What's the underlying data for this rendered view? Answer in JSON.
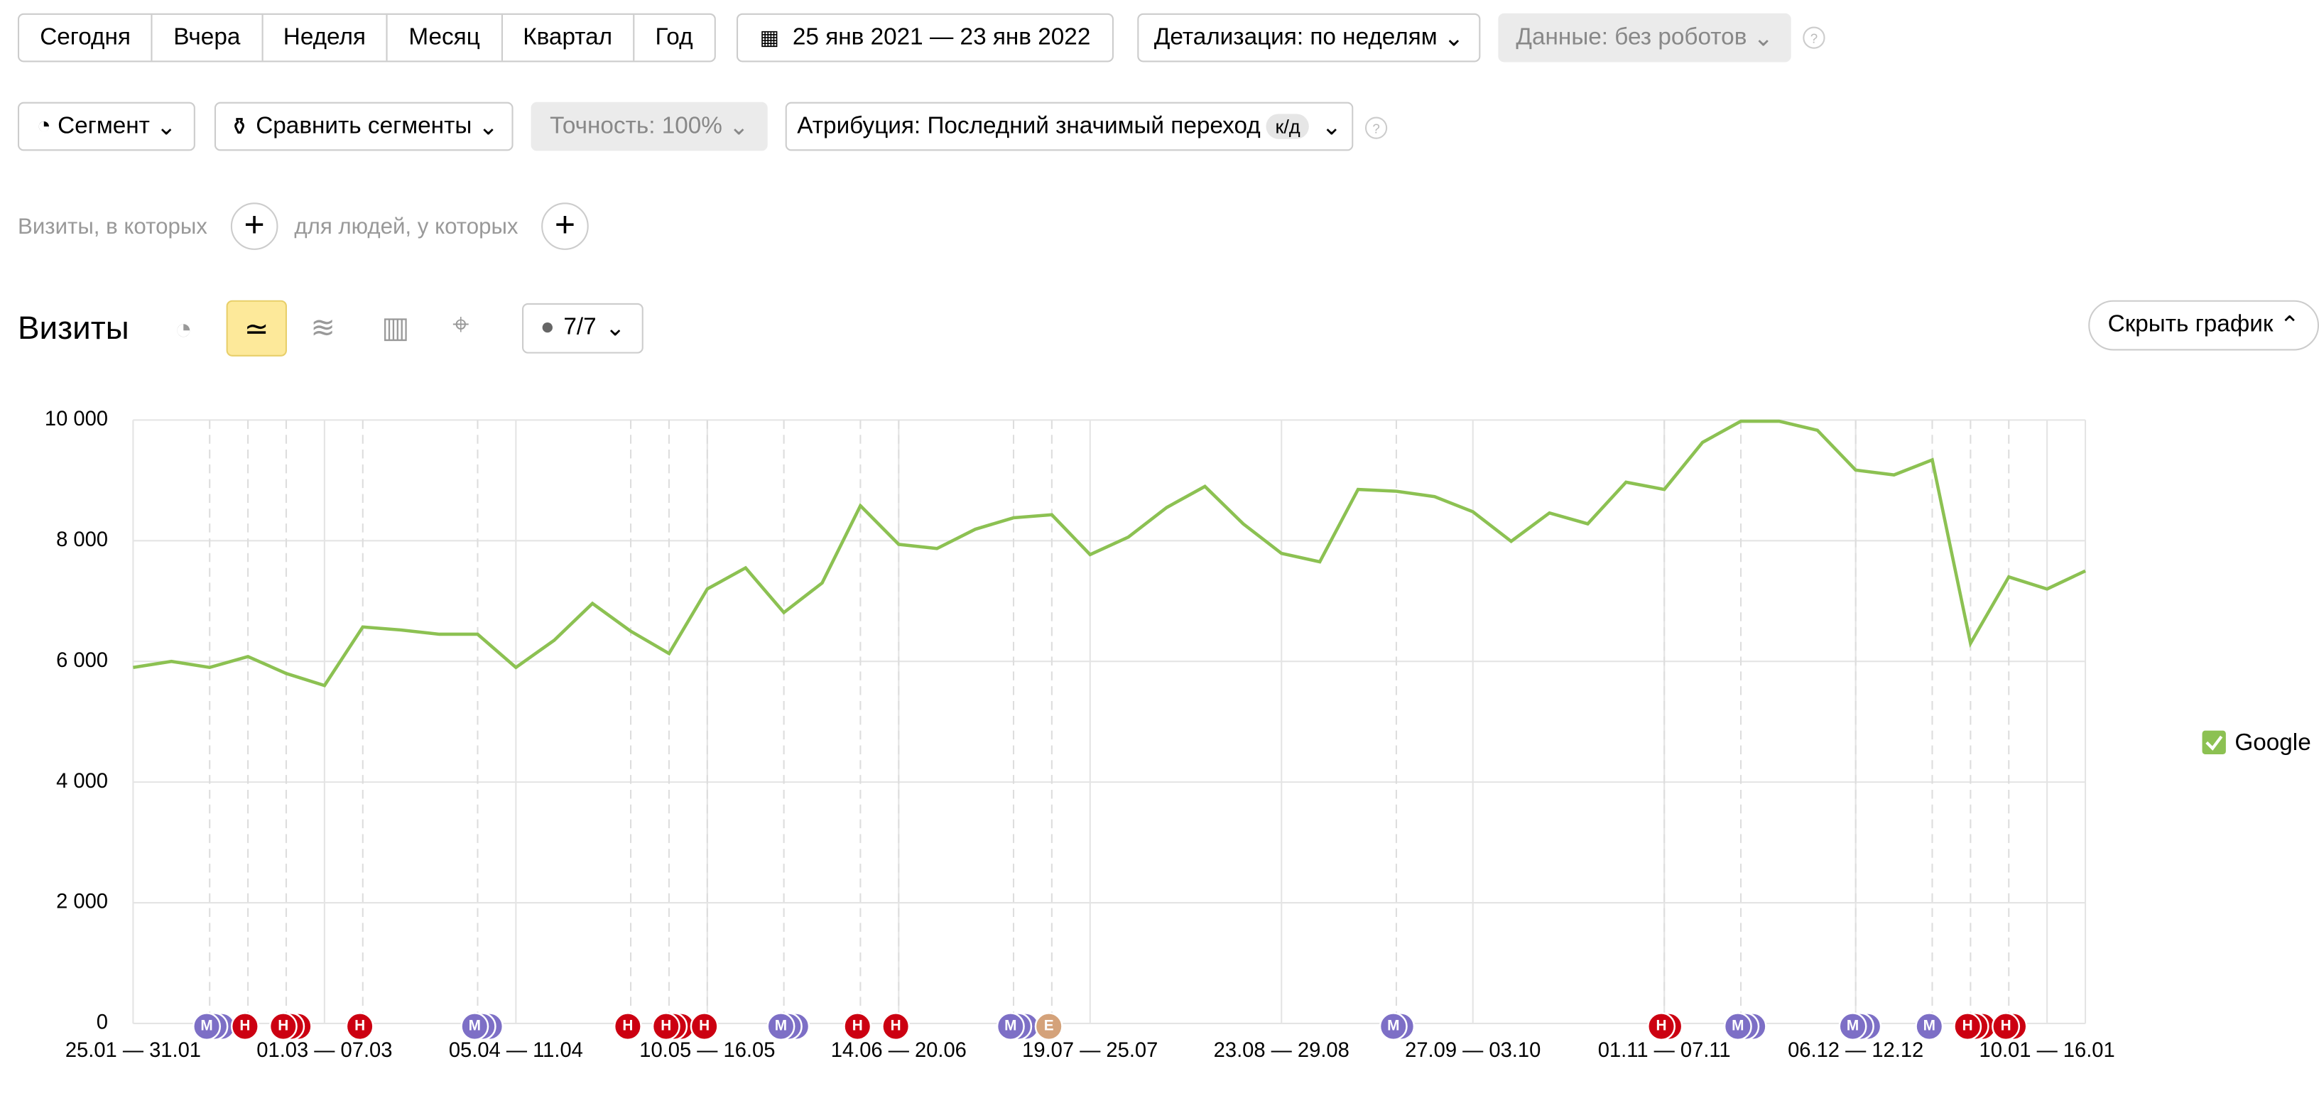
{
  "toolbar": {
    "periods": [
      "Сегодня",
      "Вчера",
      "Неделя",
      "Месяц",
      "Квартал",
      "Год"
    ],
    "date_range": "25 янв 2021 — 23 янв 2022",
    "detail": "Детализация: по неделям",
    "data_filter": "Данные: без роботов",
    "segment": "Сегмент",
    "compare": "Сравнить сегменты",
    "accuracy": "Точность: 100%",
    "attribution": "Атрибуция: Последний значимый переход",
    "attribution_badge": "к/д"
  },
  "filters": {
    "visits": "Визиты, в которых",
    "people": "для людей, у которых"
  },
  "report": {
    "title": "Визиты",
    "notes": "7/7",
    "hide": "Скрыть график"
  },
  "chart_data": {
    "type": "line",
    "categories": [
      "25.01 — 31.01",
      null,
      null,
      null,
      null,
      "01.03 — 07.03",
      null,
      null,
      null,
      null,
      "05.04 — 11.04",
      null,
      null,
      null,
      null,
      "10.05 — 16.05",
      null,
      null,
      null,
      null,
      "14.06 — 20.06",
      null,
      null,
      null,
      null,
      "19.07 — 25.07",
      null,
      null,
      null,
      null,
      "23.08 — 29.08",
      null,
      null,
      null,
      null,
      "27.09 — 03.10",
      null,
      null,
      null,
      null,
      "01.11 — 07.11",
      null,
      null,
      null,
      null,
      "06.12 — 12.12",
      null,
      null,
      null,
      null,
      "10.01 — 16.01",
      null
    ],
    "series": [
      {
        "name": "Google",
        "color": "#8cc152",
        "values": [
          5900,
          6000,
          5900,
          6080,
          5800,
          5600,
          6570,
          6520,
          6450,
          6450,
          5900,
          6350,
          6960,
          6500,
          6130,
          7200,
          7550,
          6810,
          7300,
          8580,
          7940,
          7870,
          8190,
          8380,
          8430,
          7770,
          8060,
          8550,
          8900,
          8280,
          7790,
          7650,
          8850,
          8820,
          8730,
          8480,
          7990,
          8460,
          8280,
          8970,
          8850,
          9630,
          9980,
          9980,
          9830,
          9170,
          9090,
          9340,
          6300,
          7400,
          7200,
          7500
        ]
      }
    ],
    "ylim": [
      0,
      10000
    ],
    "yticks": [
      0,
      {
        "value": 2000,
        "label": "2 000"
      },
      {
        "value": 4000,
        "label": "4 000"
      },
      {
        "value": 6000,
        "label": "6 000"
      },
      {
        "value": 8000,
        "label": "8 000"
      },
      {
        "value": 10000,
        "label": "10 000"
      }
    ],
    "grid": true,
    "markers": [
      {
        "category": 2,
        "label": "М",
        "count": 3,
        "color": "#7d6fc6"
      },
      {
        "category": 3,
        "label": "Н",
        "count": 1,
        "color": "#cc0011"
      },
      {
        "category": 4,
        "label": "Н",
        "count": 3,
        "color": "#cc0011"
      },
      {
        "category": 6,
        "label": "Н",
        "count": 1,
        "color": "#cc0011"
      },
      {
        "category": 9,
        "label": "М",
        "count": 3,
        "color": "#7d6fc6"
      },
      {
        "category": 13,
        "label": "Н",
        "count": 1,
        "color": "#cc0011"
      },
      {
        "category": 14,
        "label": "Н",
        "count": 3,
        "color": "#cc0011"
      },
      {
        "category": 15,
        "label": "Н",
        "count": 1,
        "color": "#cc0011"
      },
      {
        "category": 17,
        "label": "М",
        "count": 3,
        "color": "#7d6fc6"
      },
      {
        "category": 19,
        "label": "Н",
        "count": 1,
        "color": "#cc0011"
      },
      {
        "category": 20,
        "label": "Н",
        "count": 1,
        "color": "#cc0011"
      },
      {
        "category": 23,
        "label": "М",
        "count": 3,
        "color": "#7d6fc6"
      },
      {
        "category": 24,
        "label": "Е",
        "count": 1,
        "color": "#d4a27a"
      },
      {
        "category": 33,
        "label": "М",
        "count": 2,
        "color": "#7d6fc6"
      },
      {
        "category": 40,
        "label": "Н",
        "count": 2,
        "color": "#cc0011"
      },
      {
        "category": 42,
        "label": "М",
        "count": 3,
        "color": "#7d6fc6"
      },
      {
        "category": 45,
        "label": "М",
        "count": 3,
        "color": "#7d6fc6"
      },
      {
        "category": 47,
        "label": "М",
        "count": 1,
        "color": "#7d6fc6"
      },
      {
        "category": 48,
        "label": "Н",
        "count": 3,
        "color": "#cc0011"
      },
      {
        "category": 49,
        "label": "Н",
        "count": 2,
        "color": "#cc0011"
      }
    ]
  }
}
